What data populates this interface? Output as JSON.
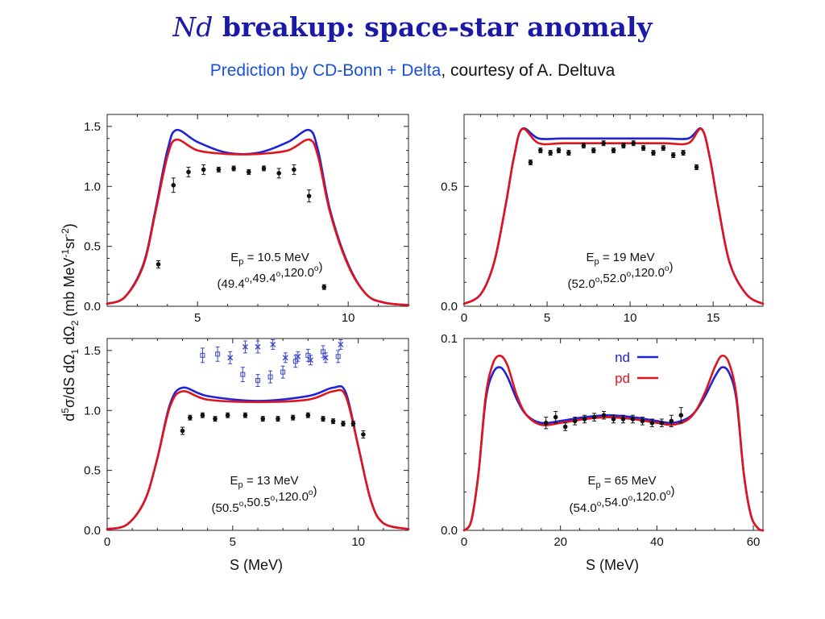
{
  "title": {
    "italic": "Nd",
    "rest": " breakup: space-star anomaly"
  },
  "subtitle": {
    "link": "Prediction by CD-Bonn + Delta",
    "rest": ", courtesy of A. Deltuva"
  },
  "y_axis_label": "d5σ/dS dΩ1 dΩ2 (mb MeV-1sr-2)",
  "x_axis_label": "S (MeV)",
  "legend": {
    "nd": "nd",
    "pd": "pd"
  },
  "colors": {
    "nd": "#1f23d6",
    "pd": "#e0141c",
    "data": "#111111",
    "data_extra": "#3a46c8"
  },
  "chart_data": [
    {
      "type": "line",
      "id": "p1",
      "energy": "Ep = 10.5 MeV",
      "angles": "(49.4o,49.4o,120.0o)",
      "xlim": [
        2,
        12
      ],
      "ylim": [
        0,
        1.6
      ],
      "xticks": [
        5,
        10
      ],
      "yticks": [
        0.0,
        0.5,
        1.0,
        1.5
      ],
      "series": [
        {
          "name": "nd",
          "x": [
            2.0,
            2.6,
            3.2,
            3.6,
            4.0,
            4.3,
            5.0,
            6.0,
            7.0,
            8.0,
            8.7,
            9.0,
            9.4,
            10.0,
            10.6,
            11.2,
            12.0
          ],
          "y": [
            0.02,
            0.08,
            0.35,
            0.8,
            1.3,
            1.47,
            1.37,
            1.28,
            1.28,
            1.37,
            1.47,
            1.3,
            0.8,
            0.35,
            0.1,
            0.03,
            0.01
          ]
        },
        {
          "name": "pd",
          "x": [
            2.0,
            2.6,
            3.2,
            3.6,
            4.0,
            4.3,
            5.0,
            6.0,
            7.0,
            8.0,
            8.7,
            9.0,
            9.4,
            10.0,
            10.6,
            11.2,
            12.0
          ],
          "y": [
            0.02,
            0.08,
            0.34,
            0.78,
            1.25,
            1.39,
            1.3,
            1.27,
            1.27,
            1.3,
            1.39,
            1.25,
            0.78,
            0.34,
            0.1,
            0.03,
            0.01
          ]
        }
      ],
      "points": [
        {
          "x": 3.7,
          "y": 0.35,
          "e": 0.03
        },
        {
          "x": 4.2,
          "y": 1.01,
          "e": 0.06
        },
        {
          "x": 4.7,
          "y": 1.12,
          "e": 0.04
        },
        {
          "x": 5.2,
          "y": 1.14,
          "e": 0.04
        },
        {
          "x": 5.7,
          "y": 1.14,
          "e": 0.02
        },
        {
          "x": 6.2,
          "y": 1.15,
          "e": 0.02
        },
        {
          "x": 6.7,
          "y": 1.12,
          "e": 0.02
        },
        {
          "x": 7.2,
          "y": 1.15,
          "e": 0.02
        },
        {
          "x": 7.7,
          "y": 1.11,
          "e": 0.04
        },
        {
          "x": 8.2,
          "y": 1.14,
          "e": 0.04
        },
        {
          "x": 8.7,
          "y": 0.92,
          "e": 0.05
        },
        {
          "x": 9.2,
          "y": 0.16,
          "e": 0.02
        }
      ],
      "extra_points": []
    },
    {
      "type": "line",
      "id": "p2",
      "energy": "Ep = 19 MeV",
      "angles": "(52.0o,52.0o,120.0o)",
      "xlim": [
        0,
        18
      ],
      "ylim": [
        0,
        0.8
      ],
      "xticks": [
        0,
        5,
        10,
        15
      ],
      "yticks": [
        0.0,
        0.5
      ],
      "series": [
        {
          "name": "nd",
          "x": [
            0,
            1.0,
            1.8,
            2.5,
            3.0,
            3.5,
            4.5,
            6,
            9,
            12,
            13.5,
            14.3,
            14.8,
            15.3,
            16,
            17,
            18
          ],
          "y": [
            0.01,
            0.05,
            0.18,
            0.42,
            0.62,
            0.74,
            0.7,
            0.7,
            0.7,
            0.7,
            0.7,
            0.74,
            0.62,
            0.42,
            0.18,
            0.05,
            0.01
          ]
        },
        {
          "name": "pd",
          "x": [
            0,
            1.0,
            1.8,
            2.5,
            3.0,
            3.5,
            4.5,
            6,
            9,
            12,
            13.5,
            14.3,
            14.8,
            15.3,
            16,
            17,
            18
          ],
          "y": [
            0.01,
            0.05,
            0.18,
            0.42,
            0.62,
            0.74,
            0.68,
            0.68,
            0.68,
            0.68,
            0.68,
            0.74,
            0.62,
            0.42,
            0.18,
            0.05,
            0.01
          ]
        }
      ],
      "points": [
        {
          "x": 4.0,
          "y": 0.6,
          "e": 0.01
        },
        {
          "x": 4.6,
          "y": 0.65,
          "e": 0.01
        },
        {
          "x": 5.2,
          "y": 0.64,
          "e": 0.01
        },
        {
          "x": 5.7,
          "y": 0.65,
          "e": 0.01
        },
        {
          "x": 6.3,
          "y": 0.64,
          "e": 0.01
        },
        {
          "x": 7.2,
          "y": 0.67,
          "e": 0.01
        },
        {
          "x": 7.8,
          "y": 0.65,
          "e": 0.01
        },
        {
          "x": 8.4,
          "y": 0.68,
          "e": 0.01
        },
        {
          "x": 9.0,
          "y": 0.65,
          "e": 0.01
        },
        {
          "x": 9.6,
          "y": 0.67,
          "e": 0.01
        },
        {
          "x": 10.2,
          "y": 0.68,
          "e": 0.01
        },
        {
          "x": 10.8,
          "y": 0.66,
          "e": 0.01
        },
        {
          "x": 11.4,
          "y": 0.64,
          "e": 0.01
        },
        {
          "x": 12.0,
          "y": 0.66,
          "e": 0.01
        },
        {
          "x": 12.6,
          "y": 0.63,
          "e": 0.01
        },
        {
          "x": 13.2,
          "y": 0.64,
          "e": 0.01
        },
        {
          "x": 14.0,
          "y": 0.58,
          "e": 0.01
        }
      ],
      "extra_points": []
    },
    {
      "type": "line",
      "id": "p3",
      "energy": "Ep = 13 MeV",
      "angles": "(50.5o,50.5o,120.0o)",
      "xlim": [
        0,
        12
      ],
      "ylim": [
        0,
        1.6
      ],
      "xticks": [
        0,
        5,
        10
      ],
      "yticks": [
        0.0,
        0.5,
        1.0,
        1.5
      ],
      "series": [
        {
          "name": "nd",
          "x": [
            0,
            0.8,
            1.5,
            2.0,
            2.5,
            3.0,
            4.0,
            6.0,
            8.0,
            9.0,
            9.5,
            10.0,
            10.5,
            11.0,
            12.0
          ],
          "y": [
            0.01,
            0.05,
            0.25,
            0.6,
            1.05,
            1.19,
            1.12,
            1.08,
            1.12,
            1.19,
            1.15,
            0.7,
            0.25,
            0.06,
            0.01
          ]
        },
        {
          "name": "pd",
          "x": [
            0,
            0.8,
            1.5,
            2.0,
            2.5,
            3.0,
            4.0,
            6.0,
            8.0,
            9.0,
            9.5,
            10.0,
            10.5,
            11.0,
            12.0
          ],
          "y": [
            0.01,
            0.05,
            0.25,
            0.6,
            1.03,
            1.16,
            1.09,
            1.07,
            1.09,
            1.16,
            1.12,
            0.7,
            0.25,
            0.06,
            0.01
          ]
        }
      ],
      "points": [
        {
          "x": 3.0,
          "y": 0.83,
          "e": 0.03
        },
        {
          "x": 3.3,
          "y": 0.94,
          "e": 0.02
        },
        {
          "x": 3.8,
          "y": 0.96,
          "e": 0.02
        },
        {
          "x": 4.3,
          "y": 0.93,
          "e": 0.02
        },
        {
          "x": 4.8,
          "y": 0.96,
          "e": 0.02
        },
        {
          "x": 5.5,
          "y": 0.96,
          "e": 0.02
        },
        {
          "x": 6.2,
          "y": 0.93,
          "e": 0.02
        },
        {
          "x": 6.8,
          "y": 0.93,
          "e": 0.02
        },
        {
          "x": 7.4,
          "y": 0.94,
          "e": 0.02
        },
        {
          "x": 8.0,
          "y": 0.96,
          "e": 0.02
        },
        {
          "x": 8.6,
          "y": 0.93,
          "e": 0.02
        },
        {
          "x": 9.0,
          "y": 0.91,
          "e": 0.02
        },
        {
          "x": 9.4,
          "y": 0.89,
          "e": 0.02
        },
        {
          "x": 9.8,
          "y": 0.89,
          "e": 0.02
        },
        {
          "x": 10.2,
          "y": 0.8,
          "e": 0.03
        }
      ],
      "extra_points": [
        {
          "x": 3.8,
          "y": 1.46,
          "e": 0.06,
          "m": "sq"
        },
        {
          "x": 4.4,
          "y": 1.47,
          "e": 0.06,
          "m": "sq"
        },
        {
          "x": 4.9,
          "y": 1.44,
          "e": 0.05,
          "m": "x"
        },
        {
          "x": 5.4,
          "y": 1.3,
          "e": 0.06,
          "m": "sq"
        },
        {
          "x": 5.5,
          "y": 1.53,
          "e": 0.05,
          "m": "x"
        },
        {
          "x": 6.0,
          "y": 1.53,
          "e": 0.05,
          "m": "x"
        },
        {
          "x": 6.0,
          "y": 1.25,
          "e": 0.05,
          "m": "sq"
        },
        {
          "x": 6.5,
          "y": 1.28,
          "e": 0.05,
          "m": "sq"
        },
        {
          "x": 6.6,
          "y": 1.55,
          "e": 0.04,
          "m": "x"
        },
        {
          "x": 7.0,
          "y": 1.32,
          "e": 0.05,
          "m": "sq"
        },
        {
          "x": 7.1,
          "y": 1.44,
          "e": 0.04,
          "m": "x"
        },
        {
          "x": 7.5,
          "y": 1.41,
          "e": 0.05,
          "m": "sq"
        },
        {
          "x": 7.6,
          "y": 1.45,
          "e": 0.04,
          "m": "x"
        },
        {
          "x": 8.0,
          "y": 1.46,
          "e": 0.05,
          "m": "sq"
        },
        {
          "x": 8.1,
          "y": 1.42,
          "e": 0.04,
          "m": "x"
        },
        {
          "x": 8.6,
          "y": 1.49,
          "e": 0.05,
          "m": "sq"
        },
        {
          "x": 8.7,
          "y": 1.44,
          "e": 0.04,
          "m": "x"
        },
        {
          "x": 9.2,
          "y": 1.45,
          "e": 0.05,
          "m": "sq"
        },
        {
          "x": 9.3,
          "y": 1.55,
          "e": 0.04,
          "m": "x"
        }
      ]
    },
    {
      "type": "line",
      "id": "p4",
      "energy": "Ep = 65 MeV",
      "angles": "(54.0o,54.0o,120.0o)",
      "xlim": [
        0,
        62
      ],
      "ylim": [
        0,
        0.1
      ],
      "xticks": [
        0,
        20,
        40,
        60
      ],
      "yticks": [
        0.0,
        0.1
      ],
      "series": [
        {
          "name": "nd",
          "x": [
            0,
            1.5,
            3,
            4.5,
            6,
            7.5,
            9,
            11,
            13,
            16,
            20,
            25,
            30,
            35,
            40,
            43,
            46,
            48,
            50,
            52,
            53.5,
            55,
            56.5,
            58,
            59.5,
            61,
            62
          ],
          "y": [
            0.0,
            0.005,
            0.03,
            0.068,
            0.082,
            0.085,
            0.08,
            0.068,
            0.06,
            0.056,
            0.057,
            0.059,
            0.06,
            0.059,
            0.057,
            0.056,
            0.058,
            0.062,
            0.07,
            0.08,
            0.085,
            0.082,
            0.068,
            0.03,
            0.008,
            0.001,
            0.0
          ]
        },
        {
          "name": "pd",
          "x": [
            0,
            1.5,
            3,
            4.5,
            6,
            7.5,
            9,
            11,
            13,
            16,
            20,
            25,
            30,
            35,
            40,
            43,
            46,
            48,
            50,
            52,
            53.5,
            55,
            56.5,
            58,
            59.5,
            61,
            62
          ],
          "y": [
            0.0,
            0.005,
            0.03,
            0.07,
            0.087,
            0.091,
            0.086,
            0.07,
            0.06,
            0.055,
            0.056,
            0.058,
            0.059,
            0.058,
            0.056,
            0.055,
            0.057,
            0.062,
            0.072,
            0.085,
            0.091,
            0.087,
            0.07,
            0.03,
            0.008,
            0.001,
            0.0
          ]
        }
      ],
      "points": [
        {
          "x": 17.0,
          "y": 0.056,
          "e": 0.003
        },
        {
          "x": 19.0,
          "y": 0.059,
          "e": 0.003
        },
        {
          "x": 21.0,
          "y": 0.054,
          "e": 0.002
        },
        {
          "x": 23.0,
          "y": 0.057,
          "e": 0.002
        },
        {
          "x": 25.0,
          "y": 0.058,
          "e": 0.002
        },
        {
          "x": 27.0,
          "y": 0.059,
          "e": 0.002
        },
        {
          "x": 29.0,
          "y": 0.06,
          "e": 0.002
        },
        {
          "x": 31.0,
          "y": 0.058,
          "e": 0.002
        },
        {
          "x": 33.0,
          "y": 0.058,
          "e": 0.002
        },
        {
          "x": 35.0,
          "y": 0.058,
          "e": 0.002
        },
        {
          "x": 37.0,
          "y": 0.057,
          "e": 0.002
        },
        {
          "x": 39.0,
          "y": 0.056,
          "e": 0.002
        },
        {
          "x": 41.0,
          "y": 0.056,
          "e": 0.002
        },
        {
          "x": 43.0,
          "y": 0.057,
          "e": 0.003
        },
        {
          "x": 45.0,
          "y": 0.06,
          "e": 0.004
        }
      ],
      "extra_points": []
    }
  ]
}
